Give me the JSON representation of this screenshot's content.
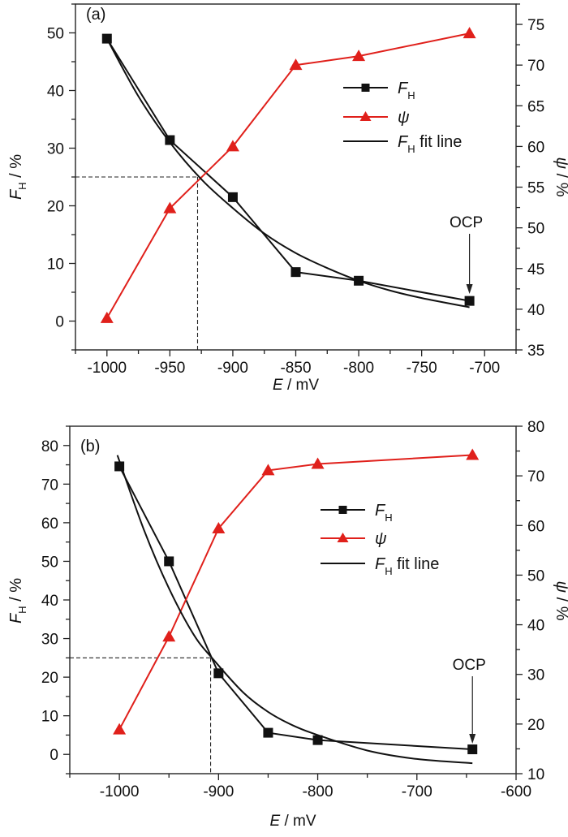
{
  "colors": {
    "fh": "#111111",
    "psi": "#e0201b",
    "fit": "#111111"
  },
  "chart_data": [
    {
      "type": "line",
      "panel_label": "(a)",
      "xlabel": "E / mV",
      "ylabel_left": "F_H / %",
      "ylabel_right": "ψ / %",
      "xlim": [
        -1025,
        -675
      ],
      "xticks": [
        -1000,
        -950,
        -900,
        -850,
        -800,
        -750,
        -700
      ],
      "ylim_left": [
        -5,
        55
      ],
      "yticks_left": [
        0,
        10,
        20,
        30,
        40,
        50
      ],
      "ylim_right": [
        35,
        77.5
      ],
      "yticks_right": [
        35,
        40,
        45,
        50,
        55,
        60,
        65,
        70,
        75
      ],
      "series": [
        {
          "name": "F_H",
          "axis": "left",
          "marker": "square",
          "x": [
            -1000,
            -950,
            -900,
            -850,
            -800,
            -712
          ],
          "y": [
            49,
            31.4,
            21.5,
            8.5,
            7.0,
            3.5
          ]
        },
        {
          "name": "ψ",
          "axis": "right",
          "marker": "triangle",
          "x": [
            -1000,
            -950,
            -900,
            -850,
            -800,
            -712
          ],
          "y": [
            38.9,
            52.4,
            60.0,
            70.0,
            71.1,
            73.9
          ]
        },
        {
          "name": "F_H fit line",
          "axis": "left",
          "marker": "none",
          "x": [
            -1000,
            -975,
            -950,
            -925,
            -900,
            -875,
            -850,
            -825,
            -800,
            -775,
            -750,
            -712
          ],
          "y": [
            49,
            39,
            31,
            24.6,
            19.6,
            15.2,
            11.8,
            9.2,
            7.0,
            5.3,
            4.0,
            2.4
          ]
        }
      ],
      "guide": {
        "x": -928,
        "y": 25
      },
      "annotation": {
        "text": "OCP",
        "x": -712
      },
      "legend": {
        "position": "upper-center",
        "items": [
          {
            "main": "F",
            "sub": "H",
            "rest": ""
          },
          {
            "main": "ψ",
            "sub": "",
            "rest": ""
          },
          {
            "main": "F",
            "sub": "H",
            "rest": " fit line"
          }
        ]
      }
    },
    {
      "type": "line",
      "panel_label": "(b)",
      "xlabel": "E / mV",
      "ylabel_left": "F_H / %",
      "ylabel_right": "ψ / %",
      "xlim": [
        -1050,
        -600
      ],
      "xticks": [
        -1000,
        -900,
        -800,
        -700,
        -600
      ],
      "ylim_left": [
        -5,
        85
      ],
      "yticks_left": [
        0,
        10,
        20,
        30,
        40,
        50,
        60,
        70,
        80
      ],
      "ylim_right": [
        10,
        80
      ],
      "yticks_right": [
        10,
        20,
        30,
        40,
        50,
        60,
        70,
        80
      ],
      "series": [
        {
          "name": "F_H",
          "axis": "left",
          "marker": "square",
          "x": [
            -1000,
            -950,
            -900,
            -850,
            -800,
            -644
          ],
          "y": [
            74.6,
            50.0,
            21.0,
            5.6,
            3.7,
            1.3
          ]
        },
        {
          "name": "ψ",
          "axis": "right",
          "marker": "triangle",
          "x": [
            -1000,
            -950,
            -900,
            -850,
            -800,
            -644
          ],
          "y": [
            18.9,
            37.6,
            59.4,
            71.1,
            72.4,
            74.2
          ]
        },
        {
          "name": "F_H fit line",
          "axis": "left",
          "marker": "none",
          "x": [
            -1002,
            -975,
            -950,
            -925,
            -905,
            -875,
            -850,
            -825,
            -800,
            -750,
            -700,
            -644
          ],
          "y": [
            77.5,
            58,
            43,
            31,
            24.5,
            16,
            11,
            7.5,
            5,
            1,
            -1.2,
            -2.3
          ]
        }
      ],
      "guide": {
        "x": -908,
        "y": 25
      },
      "annotation": {
        "text": "OCP",
        "x": -644
      },
      "legend": {
        "position": "upper-center",
        "items": [
          {
            "main": "F",
            "sub": "H",
            "rest": ""
          },
          {
            "main": "ψ",
            "sub": "",
            "rest": ""
          },
          {
            "main": "F",
            "sub": "H",
            "rest": " fit line"
          }
        ]
      }
    }
  ]
}
